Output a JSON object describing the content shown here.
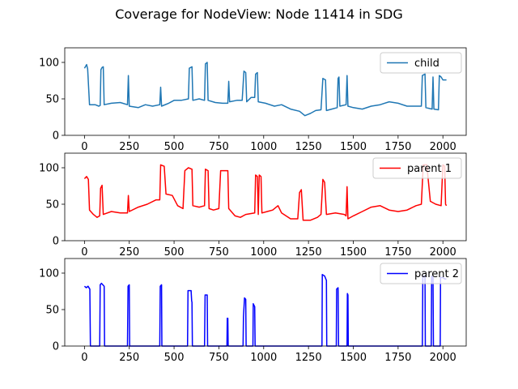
{
  "title": "Coverage for NodeView: Node 11414 in SDG",
  "chart_data": [
    {
      "type": "line",
      "xlim": [
        -110,
        2130
      ],
      "ylim": [
        0,
        120
      ],
      "x_ticks": [
        0,
        250,
        500,
        750,
        1000,
        1250,
        1500,
        1750,
        2000
      ],
      "y_ticks": [
        0,
        50,
        100
      ],
      "legend_position": "top-right",
      "series": [
        {
          "name": "child",
          "color": "#1f77b4",
          "points": [
            [
              0,
              92
            ],
            [
              12,
              97
            ],
            [
              18,
              91
            ],
            [
              28,
              42
            ],
            [
              60,
              42
            ],
            [
              80,
              40
            ],
            [
              88,
              41
            ],
            [
              92,
              90
            ],
            [
              98,
              93
            ],
            [
              105,
              94
            ],
            [
              110,
              42
            ],
            [
              150,
              44
            ],
            [
              200,
              45
            ],
            [
              240,
              42
            ],
            [
              245,
              82
            ],
            [
              250,
              40
            ],
            [
              300,
              38
            ],
            [
              340,
              42
            ],
            [
              380,
              40
            ],
            [
              420,
              42
            ],
            [
              425,
              66
            ],
            [
              430,
              40
            ],
            [
              470,
              44
            ],
            [
              500,
              48
            ],
            [
              540,
              48
            ],
            [
              580,
              50
            ],
            [
              585,
              92
            ],
            [
              600,
              94
            ],
            [
              605,
              48
            ],
            [
              640,
              50
            ],
            [
              670,
              48
            ],
            [
              675,
              98
            ],
            [
              685,
              100
            ],
            [
              690,
              48
            ],
            [
              730,
              45
            ],
            [
              770,
              44
            ],
            [
              800,
              44
            ],
            [
              805,
              74
            ],
            [
              810,
              46
            ],
            [
              850,
              48
            ],
            [
              880,
              48
            ],
            [
              890,
              88
            ],
            [
              900,
              86
            ],
            [
              905,
              46
            ],
            [
              930,
              52
            ],
            [
              950,
              52
            ],
            [
              955,
              84
            ],
            [
              965,
              86
            ],
            [
              970,
              46
            ],
            [
              1010,
              44
            ],
            [
              1060,
              40
            ],
            [
              1100,
              42
            ],
            [
              1150,
              36
            ],
            [
              1200,
              33
            ],
            [
              1230,
              27
            ],
            [
              1260,
              30
            ],
            [
              1290,
              34
            ],
            [
              1320,
              35
            ],
            [
              1330,
              78
            ],
            [
              1345,
              76
            ],
            [
              1350,
              34
            ],
            [
              1380,
              36
            ],
            [
              1410,
              38
            ],
            [
              1415,
              78
            ],
            [
              1420,
              80
            ],
            [
              1425,
              40
            ],
            [
              1460,
              42
            ],
            [
              1465,
              82
            ],
            [
              1470,
              40
            ],
            [
              1500,
              38
            ],
            [
              1550,
              36
            ],
            [
              1600,
              40
            ],
            [
              1650,
              42
            ],
            [
              1700,
              46
            ],
            [
              1750,
              44
            ],
            [
              1800,
              40
            ],
            [
              1850,
              40
            ],
            [
              1880,
              40
            ],
            [
              1885,
              82
            ],
            [
              1900,
              84
            ],
            [
              1905,
              38
            ],
            [
              1940,
              36
            ],
            [
              1945,
              80
            ],
            [
              1950,
              36
            ],
            [
              1975,
              35
            ],
            [
              1980,
              82
            ],
            [
              1990,
              80
            ],
            [
              2000,
              76
            ],
            [
              2020,
              76
            ]
          ]
        },
        {
          "name": "parent 1",
          "color": "#ff0000",
          "points": [
            [
              0,
              85
            ],
            [
              12,
              88
            ],
            [
              22,
              84
            ],
            [
              28,
              42
            ],
            [
              50,
              36
            ],
            [
              70,
              32
            ],
            [
              85,
              34
            ],
            [
              90,
              72
            ],
            [
              98,
              76
            ],
            [
              105,
              36
            ],
            [
              150,
              40
            ],
            [
              200,
              38
            ],
            [
              240,
              38
            ],
            [
              245,
              62
            ],
            [
              250,
              40
            ],
            [
              300,
              46
            ],
            [
              350,
              50
            ],
            [
              400,
              56
            ],
            [
              420,
              56
            ],
            [
              425,
              104
            ],
            [
              445,
              102
            ],
            [
              455,
              64
            ],
            [
              490,
              62
            ],
            [
              520,
              48
            ],
            [
              550,
              44
            ],
            [
              560,
              96
            ],
            [
              580,
              100
            ],
            [
              600,
              98
            ],
            [
              605,
              48
            ],
            [
              640,
              46
            ],
            [
              670,
              48
            ],
            [
              675,
              98
            ],
            [
              690,
              96
            ],
            [
              695,
              44
            ],
            [
              720,
              42
            ],
            [
              750,
              44
            ],
            [
              760,
              96
            ],
            [
              780,
              96
            ],
            [
              800,
              96
            ],
            [
              805,
              44
            ],
            [
              840,
              34
            ],
            [
              870,
              32
            ],
            [
              900,
              36
            ],
            [
              950,
              38
            ],
            [
              955,
              90
            ],
            [
              965,
              88
            ],
            [
              970,
              36
            ],
            [
              975,
              90
            ],
            [
              985,
              88
            ],
            [
              990,
              38
            ],
            [
              1020,
              40
            ],
            [
              1050,
              42
            ],
            [
              1080,
              48
            ],
            [
              1100,
              38
            ],
            [
              1150,
              30
            ],
            [
              1190,
              30
            ],
            [
              1200,
              66
            ],
            [
              1210,
              70
            ],
            [
              1220,
              28
            ],
            [
              1260,
              28
            ],
            [
              1300,
              32
            ],
            [
              1320,
              36
            ],
            [
              1330,
              84
            ],
            [
              1340,
              80
            ],
            [
              1350,
              36
            ],
            [
              1400,
              38
            ],
            [
              1450,
              36
            ],
            [
              1460,
              34
            ],
            [
              1465,
              74
            ],
            [
              1470,
              30
            ],
            [
              1500,
              34
            ],
            [
              1550,
              40
            ],
            [
              1600,
              46
            ],
            [
              1650,
              48
            ],
            [
              1700,
              42
            ],
            [
              1750,
              40
            ],
            [
              1800,
              42
            ],
            [
              1850,
              48
            ],
            [
              1880,
              50
            ],
            [
              1890,
              104
            ],
            [
              1910,
              104
            ],
            [
              1930,
              54
            ],
            [
              1960,
              50
            ],
            [
              1990,
              48
            ],
            [
              2000,
              104
            ],
            [
              2010,
              102
            ],
            [
              2015,
              50
            ],
            [
              2020,
              48
            ]
          ]
        },
        {
          "name": "parent 2",
          "color": "#0000ff",
          "points": [
            [
              0,
              82
            ],
            [
              10,
              80
            ],
            [
              20,
              82
            ],
            [
              30,
              78
            ],
            [
              33,
              0
            ],
            [
              85,
              0
            ],
            [
              88,
              84
            ],
            [
              95,
              86
            ],
            [
              110,
              82
            ],
            [
              112,
              0
            ],
            [
              240,
              0
            ],
            [
              243,
              82
            ],
            [
              250,
              84
            ],
            [
              252,
              0
            ],
            [
              420,
              0
            ],
            [
              423,
              82
            ],
            [
              430,
              84
            ],
            [
              432,
              0
            ],
            [
              575,
              0
            ],
            [
              578,
              76
            ],
            [
              595,
              76
            ],
            [
              598,
              62
            ],
            [
              600,
              60
            ],
            [
              602,
              0
            ],
            [
              670,
              0
            ],
            [
              673,
              70
            ],
            [
              685,
              70
            ],
            [
              687,
              0
            ],
            [
              795,
              0
            ],
            [
              797,
              38
            ],
            [
              800,
              38
            ],
            [
              802,
              0
            ],
            [
              885,
              0
            ],
            [
              887,
              40
            ],
            [
              893,
              66
            ],
            [
              900,
              64
            ],
            [
              902,
              0
            ],
            [
              940,
              0
            ],
            [
              942,
              58
            ],
            [
              950,
              54
            ],
            [
              952,
              0
            ],
            [
              1325,
              0
            ],
            [
              1327,
              98
            ],
            [
              1340,
              96
            ],
            [
              1350,
              90
            ],
            [
              1352,
              0
            ],
            [
              1405,
              0
            ],
            [
              1407,
              78
            ],
            [
              1415,
              80
            ],
            [
              1418,
              0
            ],
            [
              1465,
              0
            ],
            [
              1467,
              72
            ],
            [
              1470,
              70
            ],
            [
              1472,
              0
            ],
            [
              1885,
              0
            ],
            [
              1888,
              96
            ],
            [
              1900,
              96
            ],
            [
              1902,
              0
            ],
            [
              1935,
              0
            ],
            [
              1937,
              96
            ],
            [
              1945,
              94
            ],
            [
              1947,
              0
            ],
            [
              1985,
              0
            ],
            [
              1987,
              94
            ],
            [
              2000,
              94
            ],
            [
              2010,
              92
            ],
            [
              2020,
              92
            ]
          ]
        }
      ]
    }
  ]
}
